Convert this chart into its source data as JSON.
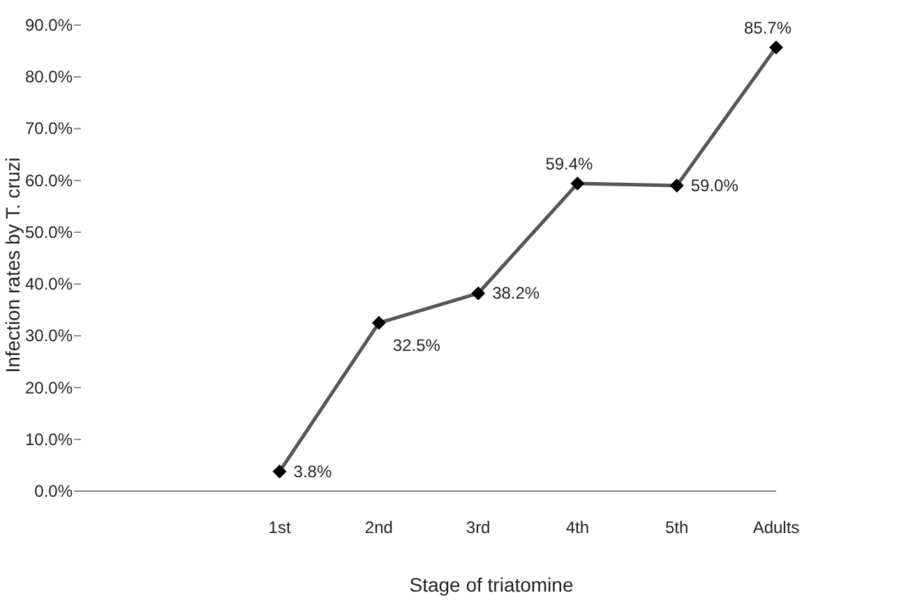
{
  "chart_data": {
    "type": "line",
    "xlabel": "Stage of triatomine",
    "ylabel": "Infection rates by T. cruzi",
    "categories": [
      null,
      null,
      "1st",
      "2nd",
      "3rd",
      "4th",
      "5th",
      "Adults"
    ],
    "values": [
      null,
      null,
      3.8,
      32.5,
      38.2,
      59.4,
      59.0,
      85.7
    ],
    "value_labels": [
      null,
      null,
      "3.8%",
      "32.5%",
      "38.2%",
      "59.4%",
      "59.0%",
      "85.7%"
    ],
    "color": "#555555",
    "marker": "diamond",
    "grid": false,
    "ylim": [
      0,
      90
    ],
    "yticks": [
      {
        "value": 0,
        "label": "0.0%"
      },
      {
        "value": 10,
        "label": "10.0%"
      },
      {
        "value": 20,
        "label": "20.0%"
      },
      {
        "value": 30,
        "label": "30.0%"
      },
      {
        "value": 40,
        "label": "40.0%"
      },
      {
        "value": 50,
        "label": "50.0%"
      },
      {
        "value": 60,
        "label": "60.0%"
      },
      {
        "value": 70,
        "label": "70.0%"
      },
      {
        "value": 80,
        "label": "80.0%"
      },
      {
        "value": 90,
        "label": "90.0%"
      }
    ]
  }
}
